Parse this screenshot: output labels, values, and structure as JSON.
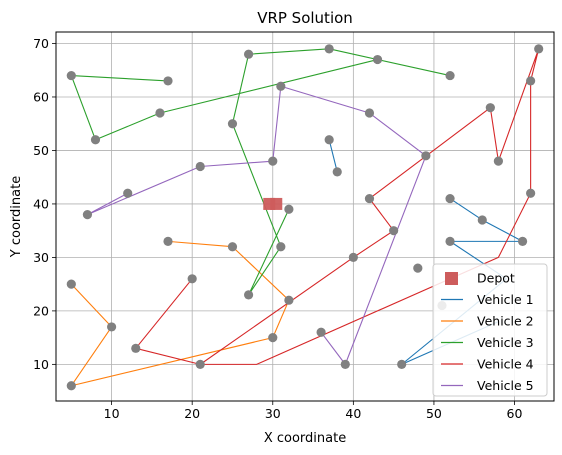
{
  "chart_data": {
    "type": "scatter",
    "title": "VRP Solution",
    "xlabel": "X coordinate",
    "ylabel": "Y coordinate",
    "xlim": [
      3.1,
      64.9
    ],
    "ylim": [
      3.15,
      72.15
    ],
    "xticks": [
      10,
      20,
      30,
      40,
      50,
      60
    ],
    "yticks": [
      10,
      20,
      30,
      40,
      50,
      60,
      70
    ],
    "grid": true,
    "legend_position": "lower-right",
    "colors": {
      "depot": "#cd5c5c",
      "customer": "#808080",
      "Vehicle 1": "#1f77b4",
      "Vehicle 2": "#ff7f0e",
      "Vehicle 3": "#2ca02c",
      "Vehicle 4": "#d62728",
      "Vehicle 5": "#9467bd"
    },
    "depot": {
      "name": "Depot",
      "x": 30,
      "y": 40
    },
    "customers": [
      [
        5,
        64
      ],
      [
        17,
        63
      ],
      [
        8,
        52
      ],
      [
        16,
        57
      ],
      [
        27,
        68
      ],
      [
        37,
        69
      ],
      [
        43,
        67
      ],
      [
        52,
        64
      ],
      [
        25,
        55
      ],
      [
        31,
        62
      ],
      [
        42,
        57
      ],
      [
        49,
        49
      ],
      [
        30,
        48
      ],
      [
        21,
        47
      ],
      [
        12,
        42
      ],
      [
        7,
        38
      ],
      [
        37,
        52
      ],
      [
        38,
        46
      ],
      [
        32,
        39
      ],
      [
        42,
        41
      ],
      [
        52,
        41
      ],
      [
        56,
        37
      ],
      [
        61,
        33
      ],
      [
        52,
        33
      ],
      [
        45,
        35
      ],
      [
        40,
        30
      ],
      [
        31,
        32
      ],
      [
        27,
        23
      ],
      [
        17,
        33
      ],
      [
        25,
        32
      ],
      [
        32,
        22
      ],
      [
        20,
        26
      ],
      [
        13,
        13
      ],
      [
        21,
        10
      ],
      [
        30,
        15
      ],
      [
        10,
        17
      ],
      [
        5,
        25
      ],
      [
        5,
        6
      ],
      [
        36,
        16
      ],
      [
        39,
        10
      ],
      [
        46,
        10
      ],
      [
        48,
        28
      ],
      [
        51,
        21
      ],
      [
        63,
        69
      ],
      [
        62,
        63
      ],
      [
        57,
        58
      ],
      [
        58,
        48
      ],
      [
        62,
        42
      ]
    ],
    "series": [
      {
        "name": "Vehicle 1",
        "points": [
          [
            37,
            52
          ],
          [
            38,
            46
          ]
        ]
      },
      {
        "name": "Vehicle 1",
        "points": [
          [
            52,
            41
          ],
          [
            56,
            37
          ],
          [
            61,
            33
          ],
          [
            52,
            33
          ],
          [
            59,
            26
          ],
          [
            46,
            10
          ],
          [
            58,
            18
          ]
        ]
      },
      {
        "name": "Vehicle 2",
        "points": [
          [
            17,
            33
          ],
          [
            25,
            32
          ],
          [
            32,
            22
          ],
          [
            30,
            15
          ],
          [
            5,
            6
          ],
          [
            10,
            17
          ],
          [
            5,
            25
          ]
        ]
      },
      {
        "name": "Vehicle 3",
        "points": [
          [
            5,
            64
          ],
          [
            17,
            63
          ]
        ]
      },
      {
        "name": "Vehicle 3",
        "points": [
          [
            5,
            64
          ],
          [
            8,
            52
          ],
          [
            16,
            57
          ],
          [
            43,
            67
          ],
          [
            52,
            64
          ],
          [
            37,
            69
          ],
          [
            27,
            68
          ],
          [
            25,
            55
          ],
          [
            31,
            32
          ],
          [
            27,
            23
          ],
          [
            32,
            39
          ]
        ]
      },
      {
        "name": "Vehicle 4",
        "points": [
          [
            20,
            26
          ],
          [
            13,
            13
          ],
          [
            21,
            10
          ],
          [
            40,
            30
          ],
          [
            45,
            35
          ],
          [
            42,
            41
          ],
          [
            57,
            58
          ],
          [
            58,
            48
          ],
          [
            63,
            69
          ],
          [
            62,
            63
          ],
          [
            62,
            42
          ],
          [
            58,
            30
          ],
          [
            28,
            10
          ],
          [
            21,
            10
          ]
        ]
      },
      {
        "name": "Vehicle 5",
        "points": [
          [
            7,
            38
          ],
          [
            12,
            42
          ]
        ]
      },
      {
        "name": "Vehicle 5",
        "points": [
          [
            7,
            38
          ],
          [
            21,
            47
          ],
          [
            30,
            48
          ],
          [
            31,
            62
          ],
          [
            42,
            57
          ],
          [
            49,
            49
          ],
          [
            39,
            10
          ],
          [
            36,
            16
          ]
        ]
      }
    ],
    "legend": [
      "Depot",
      "Vehicle 1",
      "Vehicle 2",
      "Vehicle 3",
      "Vehicle 4",
      "Vehicle 5"
    ]
  }
}
